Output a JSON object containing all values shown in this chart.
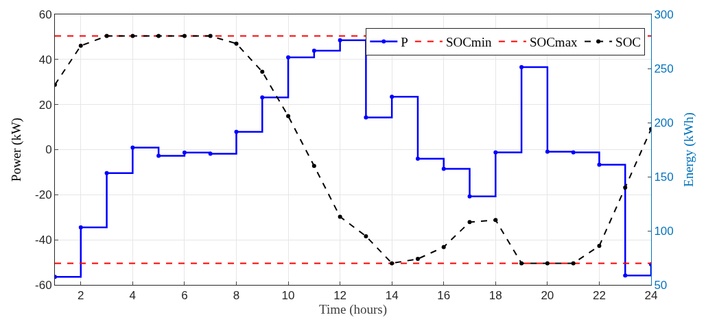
{
  "chart_data": {
    "type": "step",
    "xlabel": "Time (hours)",
    "ylabel": "Power (kW)",
    "y2label": "Energy (kWh)",
    "x": [
      1,
      2,
      3,
      4,
      5,
      6,
      7,
      8,
      9,
      10,
      11,
      12,
      13,
      14,
      15,
      16,
      17,
      18,
      19,
      20,
      21,
      22,
      23,
      24
    ],
    "series": [
      {
        "name": "P",
        "color": "#0000ff",
        "line_style": "solid",
        "values": [
          -56.4,
          -34.5,
          -10.4,
          0.9,
          -2.7,
          -1.3,
          -1.8,
          7.9,
          23.2,
          40.9,
          43.9,
          48.5,
          14.3,
          23.5,
          -4,
          -8.5,
          -20.7,
          -1.2,
          36.6,
          -0.9,
          -1.2,
          -6.7,
          -55.8,
          -50.9
        ]
      },
      {
        "name": "SOC",
        "color": "#000000",
        "type": "line",
        "axis": "y2",
        "line_style": "dashed",
        "values": [
          235,
          271,
          280,
          280,
          280,
          280,
          280,
          273,
          247,
          206,
          160,
          113,
          95,
          70,
          74,
          85,
          108,
          110,
          70,
          70,
          70,
          86,
          140,
          194
        ]
      }
    ],
    "ref_lines": [
      {
        "axis": "y2",
        "value": 70,
        "label": "SOCmin",
        "color": "#ff0000",
        "line_style": "dashed"
      },
      {
        "axis": "y2",
        "value": 280,
        "label": "SOCmax",
        "color": "#ff0000",
        "line_style": "dashed"
      }
    ],
    "xlim": [
      1,
      24
    ],
    "xticks": [
      2,
      4,
      6,
      8,
      10,
      12,
      14,
      16,
      18,
      20,
      22,
      24
    ],
    "ylim": [
      -60,
      60
    ],
    "yticks": [
      -60,
      -40,
      -20,
      0,
      20,
      40,
      60
    ],
    "y2lim": [
      50,
      300
    ],
    "y2ticks": [
      50,
      100,
      150,
      200,
      250,
      300
    ],
    "grid": true,
    "legend": "top right",
    "marker": "circle"
  }
}
